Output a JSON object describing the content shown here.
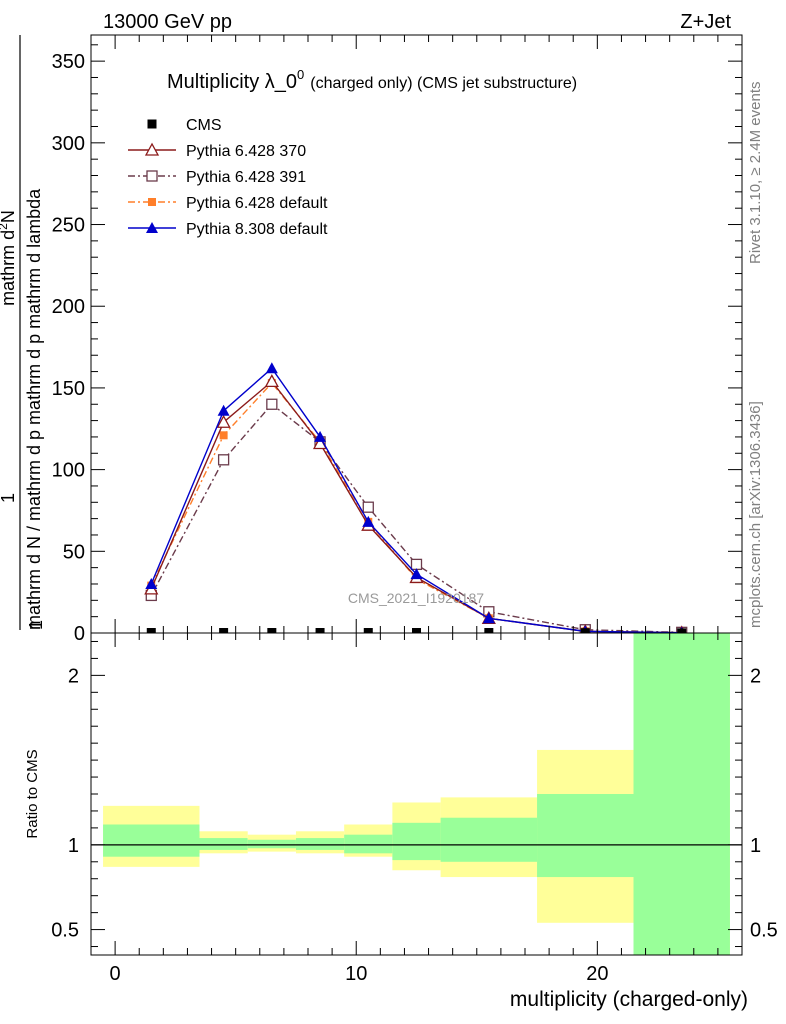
{
  "header": {
    "left": "13000 GeV pp",
    "right": "Z+Jet"
  },
  "side_labels": {
    "rivet": "Rivet 3.1.10, ≥ 2.4M events",
    "mcplots": "mcplots.cern.ch [arXiv:1306.3436]"
  },
  "watermark": "CMS_2021_I1920187",
  "colors": {
    "cms": "#000000",
    "p370": "#8b1a1a",
    "p391": "#6b3b4b",
    "p6def": "#ff7f2a",
    "p8def": "#0000cc",
    "band_green": "#99ff99",
    "band_yellow": "#ffff99"
  },
  "chart_data": [
    {
      "type": "line",
      "title": "Multiplicity λ_0⁰ (charged only) (CMS jet substructure)",
      "title_main": "Multiplicity λ_0",
      "title_sup": "0",
      "title_small": "(charged only) (CMS jet substructure)",
      "ylabel_numerator": "mathrm d²N",
      "ylabel_numerator_sup": "2",
      "ylabel_numerator_text": "mathrm dN",
      "ylabel_denominator": "mathrm d N / mathrm d p_T mathrm d p_T mathrm d lambda",
      "ylabel_num_one": "1",
      "ylabel_den_a": "mathrm d N / mathrm d p",
      "ylabel_den_sub1": "T",
      "ylabel_den_b": "mathrm d p",
      "ylabel_den_sub2": "T",
      "ylabel_den_c": "mathrm d lambda",
      "xlim": [
        -1,
        26
      ],
      "ylim": [
        0,
        366
      ],
      "y_ticks": [
        0,
        50,
        100,
        150,
        200,
        250,
        300,
        350
      ],
      "y_tick_labels": [
        "0",
        "50",
        "100",
        "150",
        "200",
        "250",
        "300",
        "350"
      ],
      "legend_position": "top-left",
      "series": [
        {
          "name": "CMS",
          "key": "cms",
          "x": [
            1.5,
            4.5,
            6.5,
            8.5,
            10.5,
            12.5,
            15.5,
            19.5,
            23.5
          ],
          "y": [
            0.3,
            0.3,
            0.3,
            0.3,
            0.3,
            0.3,
            0.3,
            0.2,
            0.1
          ]
        },
        {
          "name": "Pythia 6.428 370",
          "key": "p370",
          "x": [
            1.5,
            4.5,
            6.5,
            8.5,
            10.5,
            12.5,
            15.5,
            19.5,
            23.5
          ],
          "y": [
            27,
            129,
            154,
            116,
            66,
            34,
            9,
            1,
            0.2
          ]
        },
        {
          "name": "Pythia 6.428 391",
          "key": "p391",
          "x": [
            1.5,
            4.5,
            6.5,
            8.5,
            10.5,
            12.5,
            15.5,
            19.5,
            23.5
          ],
          "y": [
            23,
            106,
            140,
            117,
            77,
            42,
            13,
            2,
            0.4
          ]
        },
        {
          "name": "Pythia 6.428 default",
          "key": "p6def",
          "x": [
            1.5,
            4.5,
            6.5,
            8.5,
            10.5,
            12.5,
            15.5,
            19.5,
            23.5
          ],
          "y": [
            29,
            121,
            153,
            117,
            68,
            33,
            9,
            1,
            0.2
          ]
        },
        {
          "name": "Pythia 8.308 default",
          "key": "p8def",
          "x": [
            1.5,
            4.5,
            6.5,
            8.5,
            10.5,
            12.5,
            15.5,
            19.5,
            23.5
          ],
          "y": [
            30,
            136,
            162,
            120,
            68,
            36,
            9,
            1,
            0.2
          ]
        }
      ]
    },
    {
      "type": "area",
      "ylabel": "Ratio to CMS",
      "xlabel": "multiplicity (charged-only)",
      "xlim": [
        -1,
        26
      ],
      "ylim": [
        0.35,
        2.25
      ],
      "y_ticks": [
        0.5,
        1,
        2
      ],
      "y_tick_labels": [
        "0.5",
        "1",
        "2"
      ],
      "x_ticks": [
        0,
        10,
        20
      ],
      "x_tick_labels": [
        "0",
        "10",
        "20"
      ],
      "bins": [
        {
          "lo": -0.5,
          "hi": 3.5,
          "green": [
            0.93,
            1.12
          ],
          "yellow": [
            0.87,
            1.23
          ]
        },
        {
          "lo": 3.5,
          "hi": 5.5,
          "green": [
            0.97,
            1.04
          ],
          "yellow": [
            0.95,
            1.08
          ]
        },
        {
          "lo": 5.5,
          "hi": 7.5,
          "green": [
            0.98,
            1.03
          ],
          "yellow": [
            0.96,
            1.06
          ]
        },
        {
          "lo": 7.5,
          "hi": 9.5,
          "green": [
            0.97,
            1.04
          ],
          "yellow": [
            0.95,
            1.08
          ]
        },
        {
          "lo": 9.5,
          "hi": 11.5,
          "green": [
            0.95,
            1.06
          ],
          "yellow": [
            0.93,
            1.12
          ]
        },
        {
          "lo": 11.5,
          "hi": 13.5,
          "green": [
            0.91,
            1.13
          ],
          "yellow": [
            0.85,
            1.25
          ]
        },
        {
          "lo": 13.5,
          "hi": 17.5,
          "green": [
            0.9,
            1.16
          ],
          "yellow": [
            0.81,
            1.28
          ]
        },
        {
          "lo": 17.5,
          "hi": 21.5,
          "green": [
            0.81,
            1.3
          ],
          "yellow": [
            0.54,
            1.56
          ]
        },
        {
          "lo": 21.5,
          "hi": 25.5,
          "green": [
            0.35,
            2.35
          ],
          "yellow": [
            0.35,
            2.5
          ]
        }
      ]
    }
  ]
}
